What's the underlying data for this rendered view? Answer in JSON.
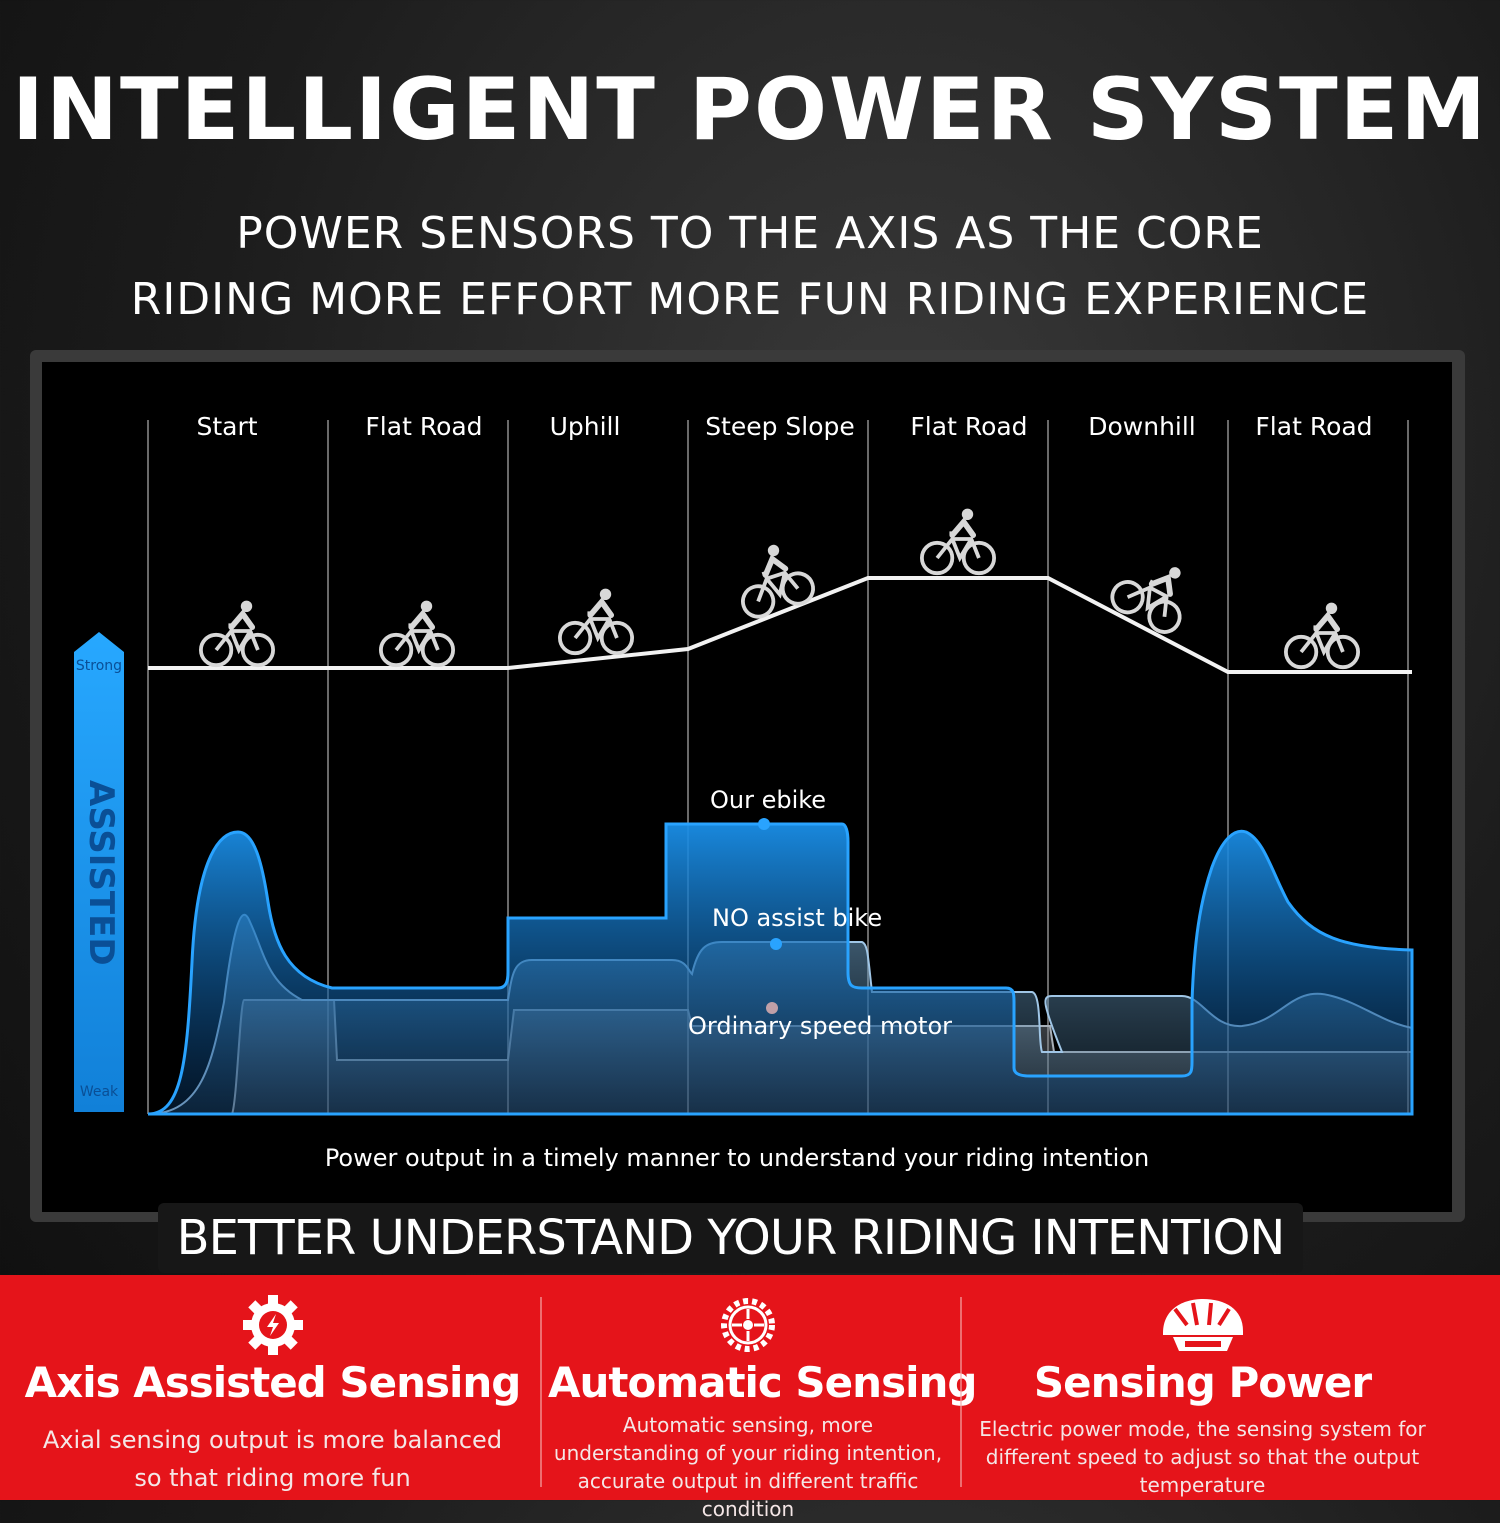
{
  "header": {
    "title": "INTELLIGENT POWER SYSTEM",
    "subtitle_line1": "POWER SENSORS TO THE AXIS AS THE CORE",
    "subtitle_line2": "RIDING MORE EFFORT MORE FUN RIDING EXPERIENCE"
  },
  "diagram": {
    "segments": [
      "Start",
      "Flat Road",
      "Uphill",
      "Steep Slope",
      "Flat Road",
      "Downhill",
      "Flat Road"
    ],
    "axis_label": "ASSISTED",
    "axis_top": "Strong",
    "axis_bottom": "Weak",
    "series_labels": {
      "our_ebike": "Our ebike",
      "no_assist": "NO assist bike",
      "ordinary": "Ordinary speed motor"
    },
    "caption": "Power output in a timely manner to understand your riding intention",
    "colors": {
      "our_ebike": "#1a8fe8",
      "no_assist": "#7fb6e0",
      "ordinary": "#9aa4ad",
      "axis_arrow": "#1c9cf2"
    }
  },
  "banner": "BETTER UNDERSTAND YOUR RIDING INTENTION",
  "features": [
    {
      "icon": "gear-bolt-icon",
      "title": "Axis Assisted Sensing",
      "desc": "Axial sensing output is more balanced so that riding more fun"
    },
    {
      "icon": "chainring-icon",
      "title": "Automatic Sensing",
      "desc": "Automatic sensing,  more understanding of your riding intention,  accurate output in different traffic condition"
    },
    {
      "icon": "helmet-icon",
      "title": "Sensing Power",
      "desc": "Electric power mode,  the sensing system for different speed to adjust so that the output temperature"
    }
  ],
  "theme": {
    "accent": "#e5141a"
  }
}
